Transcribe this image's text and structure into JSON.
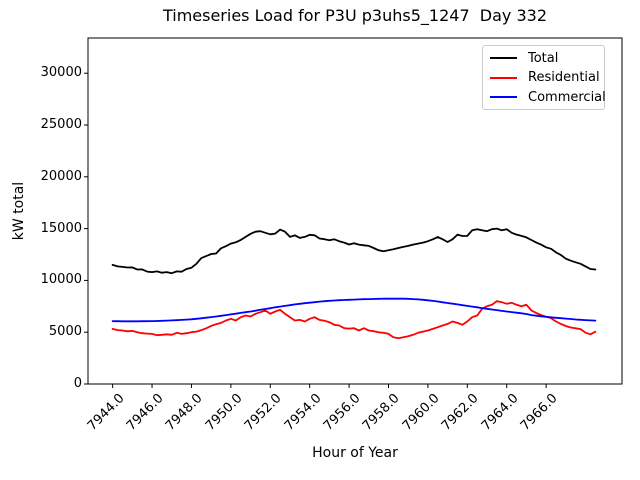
{
  "chart_data": {
    "type": "line",
    "title": "Timeseries Load for P3U p3uhs5_1247  Day 332",
    "xlabel": "Hour of Year",
    "ylabel": "kW total",
    "grid": false,
    "legend_position": "upper right",
    "xlim": [
      7942.75,
      7969.85
    ],
    "ylim": [
      0,
      33400
    ],
    "xticks": {
      "values": [
        7944,
        7946,
        7948,
        7950,
        7952,
        7954,
        7956,
        7958,
        7960,
        7962,
        7964,
        7966
      ],
      "labels": [
        "7944.0",
        "7946.0",
        "7948.0",
        "7950.0",
        "7952.0",
        "7954.0",
        "7956.0",
        "7958.0",
        "7960.0",
        "7962.0",
        "7964.0",
        "7966.0"
      ]
    },
    "yticks": {
      "values": [
        0,
        5000,
        10000,
        15000,
        20000,
        25000,
        30000
      ],
      "labels": [
        "0",
        "5000",
        "10000",
        "15000",
        "20000",
        "25000",
        "30000"
      ]
    },
    "x_start": 7944.0,
    "x_step": 0.25,
    "series": [
      {
        "name": "Total",
        "color": "#000000",
        "values": [
          11500,
          11350,
          11300,
          11250,
          11260,
          11050,
          11060,
          10850,
          10800,
          10870,
          10740,
          10800,
          10700,
          10870,
          10840,
          11100,
          11230,
          11600,
          12150,
          12350,
          12550,
          12600,
          13100,
          13300,
          13550,
          13680,
          13900,
          14200,
          14500,
          14700,
          14750,
          14600,
          14450,
          14520,
          14900,
          14700,
          14200,
          14350,
          14100,
          14200,
          14400,
          14350,
          14050,
          13980,
          13880,
          13970,
          13780,
          13650,
          13470,
          13580,
          13455,
          13390,
          13330,
          13130,
          12910,
          12810,
          12905,
          13000,
          13130,
          13230,
          13330,
          13455,
          13550,
          13650,
          13780,
          13970,
          14190,
          13970,
          13710,
          13970,
          14420,
          14290,
          14300,
          14840,
          14940,
          14840,
          14750,
          14940,
          15000,
          14840,
          14940,
          14600,
          14420,
          14300,
          14150,
          13900,
          13650,
          13450,
          13200,
          13050,
          12700,
          12450,
          12100,
          11900,
          11750,
          11600,
          11350,
          11100,
          11050
        ]
      },
      {
        "name": "Residential",
        "color": "#ff0000",
        "values": [
          5320,
          5200,
          5160,
          5090,
          5130,
          5000,
          4900,
          4870,
          4840,
          4710,
          4750,
          4800,
          4745,
          4940,
          4840,
          4900,
          5000,
          5060,
          5200,
          5380,
          5610,
          5770,
          5900,
          6130,
          6290,
          6130,
          6450,
          6610,
          6515,
          6775,
          6930,
          7095,
          6775,
          7000,
          7160,
          6775,
          6450,
          6130,
          6190,
          6030,
          6290,
          6450,
          6190,
          6100,
          5965,
          5710,
          5645,
          5385,
          5350,
          5385,
          5160,
          5385,
          5160,
          5100,
          4995,
          4940,
          4840,
          4510,
          4415,
          4510,
          4610,
          4745,
          4940,
          5060,
          5160,
          5320,
          5480,
          5645,
          5805,
          6030,
          5900,
          5710,
          6030,
          6450,
          6610,
          7260,
          7510,
          7645,
          8000,
          7900,
          7740,
          7840,
          7645,
          7510,
          7645,
          7100,
          6850,
          6650,
          6500,
          6350,
          6030,
          5800,
          5600,
          5450,
          5380,
          5300,
          4950,
          4800,
          5050
        ]
      },
      {
        "name": "Commercial",
        "color": "#0000ff",
        "values": [
          6060,
          6060,
          6050,
          6050,
          6050,
          6050,
          6060,
          6060,
          6070,
          6080,
          6100,
          6120,
          6140,
          6160,
          6190,
          6220,
          6250,
          6290,
          6340,
          6400,
          6460,
          6520,
          6580,
          6650,
          6720,
          6790,
          6860,
          6930,
          7000,
          7080,
          7160,
          7240,
          7320,
          7400,
          7470,
          7540,
          7610,
          7680,
          7740,
          7800,
          7850,
          7900,
          7950,
          7990,
          8030,
          8060,
          8090,
          8110,
          8130,
          8150,
          8170,
          8190,
          8200,
          8210,
          8220,
          8230,
          8230,
          8230,
          8240,
          8230,
          8220,
          8200,
          8170,
          8130,
          8080,
          8020,
          7960,
          7890,
          7820,
          7750,
          7680,
          7610,
          7540,
          7470,
          7400,
          7330,
          7260,
          7190,
          7130,
          7060,
          7000,
          6940,
          6880,
          6820,
          6760,
          6650,
          6590,
          6540,
          6490,
          6440,
          6390,
          6350,
          6310,
          6270,
          6230,
          6200,
          6170,
          6140,
          6120
        ]
      }
    ]
  }
}
